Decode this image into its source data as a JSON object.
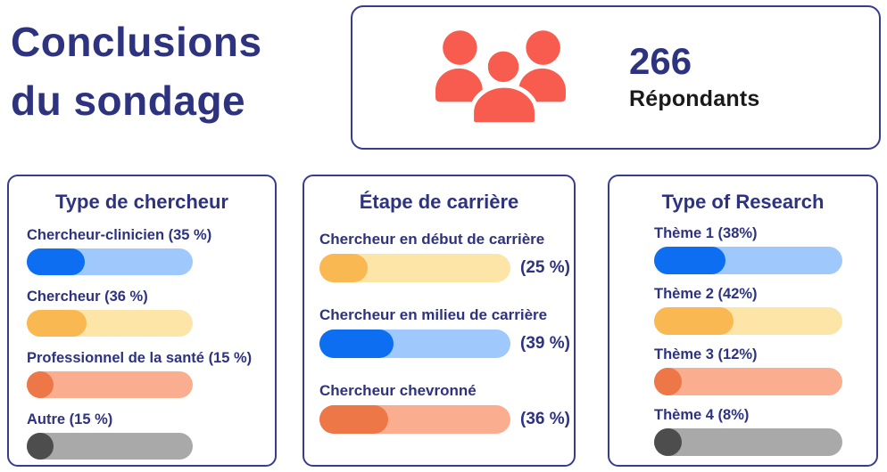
{
  "title": {
    "line1": "Conclusions",
    "line2": "du sondage"
  },
  "respondents": {
    "count": "266",
    "label": "Répondants"
  },
  "colors": {
    "navy": "#2E337F",
    "dark_text": "#1A1A1A",
    "coral": "#F85C4E",
    "card_border": "#383B8E",
    "background": "#FFFFFF"
  },
  "palettes": {
    "blue": {
      "fill": "#0D6EF1",
      "track": "#9FC9FC"
    },
    "yellow": {
      "fill": "#F9B851",
      "track": "#FDE5A8"
    },
    "orange": {
      "fill": "#EE7747",
      "track": "#FAAE8F"
    },
    "gray": {
      "fill": "#4D4D4D",
      "track": "#A9A9A9"
    }
  },
  "cards": [
    {
      "title": "Type de chercheur",
      "rows": [
        {
          "label": "Chercheur-clinicien (35 %)",
          "pct": 35,
          "color": "blue"
        },
        {
          "label": "Chercheur (36 %)",
          "pct": 36,
          "color": "yellow"
        },
        {
          "label": "Professionnel de la santé (15 %)",
          "pct": 15,
          "color": "orange"
        },
        {
          "label": "Autre (15 %)",
          "pct": 15,
          "color": "gray"
        }
      ]
    },
    {
      "title": "Étape de carrière",
      "rows": [
        {
          "label": "Chercheur en début de carrière",
          "pct": 25,
          "pct_label": "(25 %)",
          "color": "yellow"
        },
        {
          "label": "Chercheur en milieu de carrière",
          "pct": 39,
          "pct_label": "(39 %)",
          "color": "blue"
        },
        {
          "label": "Chercheur chevronné",
          "pct": 36,
          "pct_label": "(36 %)",
          "color": "orange"
        }
      ]
    },
    {
      "title": "Type of Research",
      "rows": [
        {
          "label": "Thème 1 (38%)",
          "pct": 38,
          "color": "blue"
        },
        {
          "label": "Thème 2 (42%)",
          "pct": 42,
          "color": "yellow"
        },
        {
          "label": "Thème 3 (12%)",
          "pct": 12,
          "color": "orange"
        },
        {
          "label": "Thème 4 (8%)",
          "pct": 8,
          "color": "gray"
        }
      ]
    }
  ],
  "chart_data": [
    {
      "type": "bar",
      "orientation": "horizontal",
      "title": "Type de chercheur",
      "categories": [
        "Chercheur-clinicien",
        "Chercheur",
        "Professionnel de la santé",
        "Autre"
      ],
      "values": [
        35,
        36,
        15,
        15
      ],
      "unit": "%",
      "xlim": [
        0,
        100
      ],
      "grid": false,
      "legend": false
    },
    {
      "type": "bar",
      "orientation": "horizontal",
      "title": "Étape de carrière",
      "categories": [
        "Chercheur en début de carrière",
        "Chercheur en milieu de carrière",
        "Chercheur chevronné"
      ],
      "values": [
        25,
        39,
        36
      ],
      "unit": "%",
      "xlim": [
        0,
        100
      ],
      "grid": false,
      "legend": false
    },
    {
      "type": "bar",
      "orientation": "horizontal",
      "title": "Type of Research",
      "categories": [
        "Thème 1",
        "Thème 2",
        "Thème 3",
        "Thème 4"
      ],
      "values": [
        38,
        42,
        12,
        8
      ],
      "unit": "%",
      "xlim": [
        0,
        100
      ],
      "grid": false,
      "legend": false
    },
    {
      "type": "kpi",
      "title": "Répondants",
      "value": 266
    }
  ]
}
